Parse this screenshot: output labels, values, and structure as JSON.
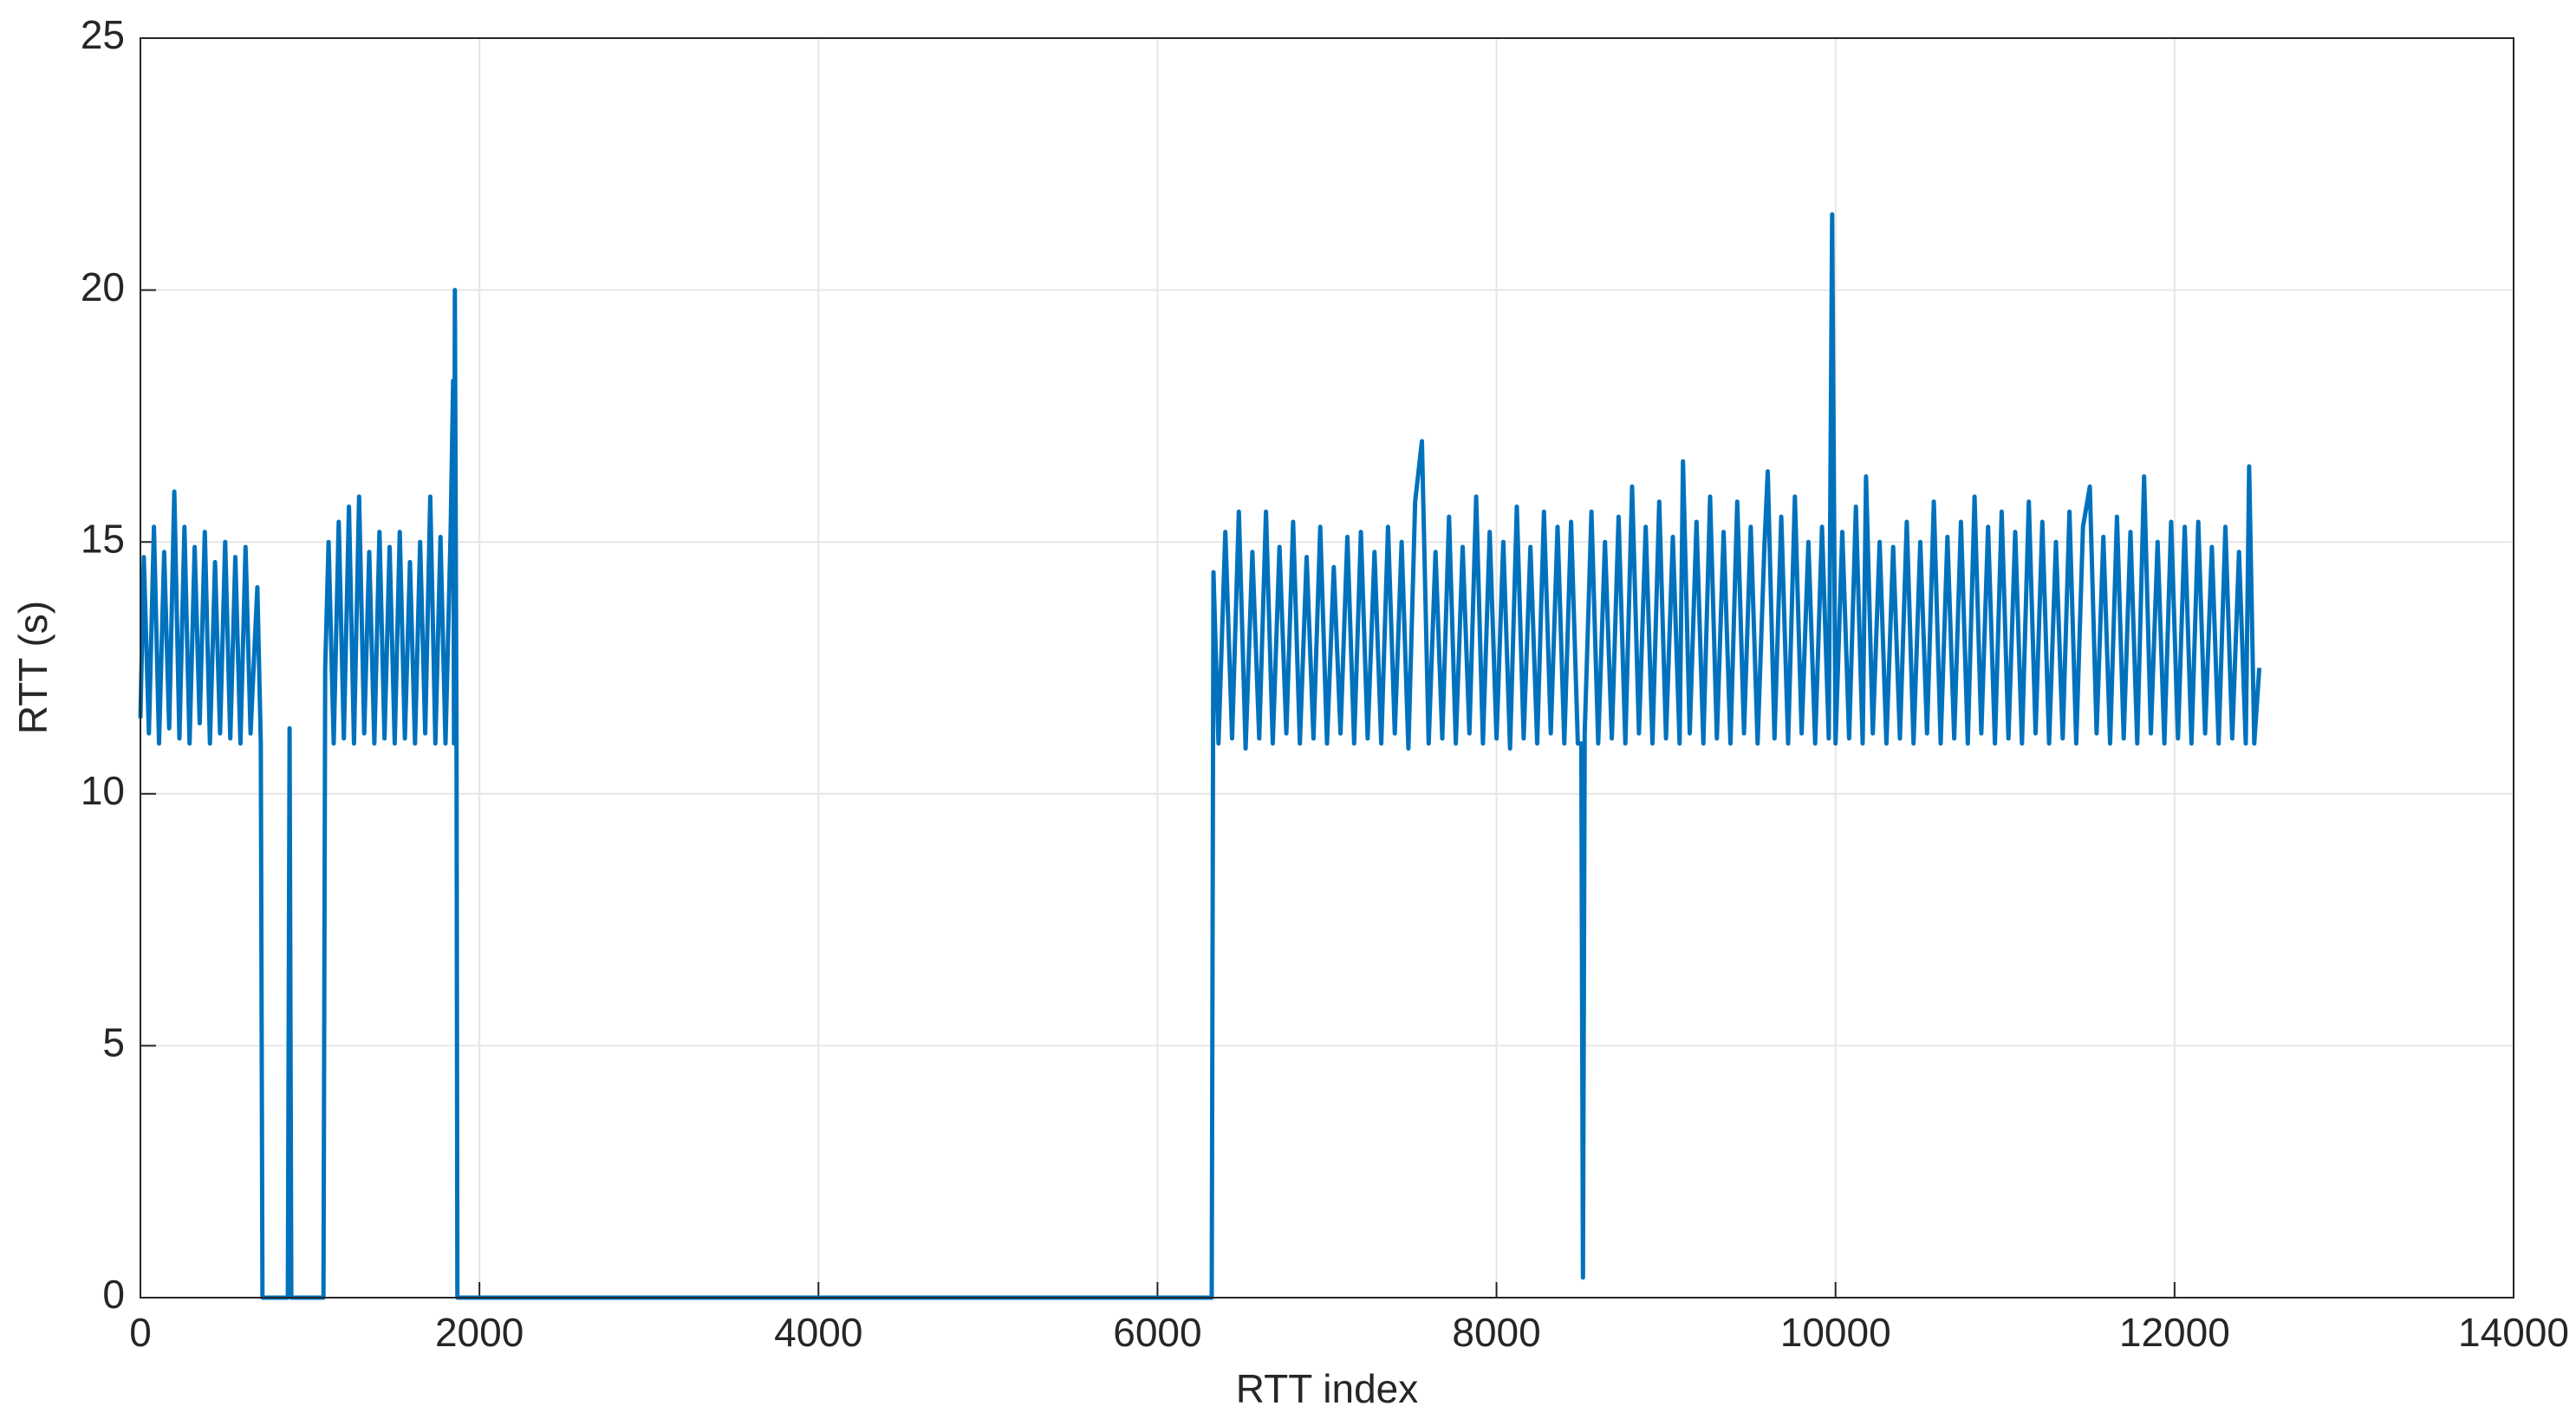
{
  "chart_data": {
    "type": "line",
    "xlabel": "RTT index",
    "ylabel": "RTT (s)",
    "color": "#0072bd",
    "grid": true,
    "xlim": [
      0,
      14000
    ],
    "xticks": [
      0,
      2000,
      4000,
      6000,
      8000,
      10000,
      12000,
      14000
    ],
    "ylim": [
      0,
      25
    ],
    "yticks": [
      0,
      5,
      10,
      15,
      20,
      25
    ],
    "x": [
      0,
      20,
      50,
      80,
      110,
      140,
      170,
      200,
      230,
      260,
      290,
      320,
      350,
      380,
      410,
      440,
      470,
      500,
      530,
      560,
      590,
      620,
      650,
      690,
      710,
      720,
      870,
      880,
      890,
      1080,
      1090,
      1110,
      1140,
      1170,
      1200,
      1230,
      1260,
      1290,
      1320,
      1350,
      1380,
      1410,
      1440,
      1470,
      1500,
      1530,
      1560,
      1590,
      1620,
      1650,
      1680,
      1710,
      1740,
      1770,
      1800,
      1830,
      1845,
      1850,
      1855,
      1865,
      1870,
      6320,
      6330,
      6360,
      6400,
      6440,
      6480,
      6520,
      6560,
      6600,
      6640,
      6680,
      6720,
      6760,
      6800,
      6840,
      6880,
      6920,
      6960,
      7000,
      7040,
      7080,
      7120,
      7160,
      7200,
      7240,
      7280,
      7320,
      7360,
      7400,
      7440,
      7480,
      7520,
      7560,
      7600,
      7640,
      7680,
      7720,
      7760,
      7800,
      7840,
      7880,
      7920,
      7960,
      8000,
      8040,
      8080,
      8120,
      8160,
      8200,
      8240,
      8280,
      8320,
      8360,
      8400,
      8440,
      8480,
      8500,
      8510,
      8520,
      8560,
      8600,
      8640,
      8680,
      8720,
      8760,
      8800,
      8840,
      8880,
      8920,
      8960,
      9000,
      9040,
      9080,
      9100,
      9140,
      9180,
      9220,
      9260,
      9300,
      9340,
      9380,
      9420,
      9460,
      9500,
      9540,
      9580,
      9600,
      9640,
      9680,
      9720,
      9760,
      9800,
      9840,
      9880,
      9920,
      9960,
      9980,
      10000,
      10040,
      10080,
      10120,
      10160,
      10180,
      10220,
      10260,
      10300,
      10340,
      10380,
      10420,
      10460,
      10500,
      10540,
      10580,
      10620,
      10660,
      10700,
      10740,
      10780,
      10820,
      10860,
      10900,
      10940,
      10980,
      11020,
      11060,
      11100,
      11140,
      11180,
      11220,
      11260,
      11300,
      11340,
      11380,
      11420,
      11460,
      11500,
      11540,
      11580,
      11620,
      11660,
      11700,
      11740,
      11780,
      11820,
      11860,
      11900,
      11940,
      11980,
      12020,
      12060,
      12100,
      12140,
      12180,
      12220,
      12260,
      12300,
      12340,
      12380,
      12420,
      12440,
      12470,
      12500
    ],
    "values": [
      11.5,
      14.7,
      11.2,
      15.3,
      11.0,
      14.8,
      11.3,
      16.0,
      11.1,
      15.3,
      11.0,
      14.9,
      11.4,
      15.2,
      11.0,
      14.6,
      11.2,
      15.0,
      11.1,
      14.7,
      11.0,
      14.9,
      11.2,
      14.1,
      11.0,
      0,
      0,
      11.3,
      0,
      0,
      12.5,
      15.0,
      11.0,
      15.4,
      11.1,
      15.7,
      11.0,
      15.9,
      11.2,
      14.8,
      11.0,
      15.2,
      11.1,
      14.9,
      11.0,
      15.2,
      11.1,
      14.6,
      11.0,
      15.0,
      11.2,
      15.9,
      11.0,
      15.1,
      11.0,
      15.2,
      18.2,
      11.0,
      20.0,
      11.0,
      0,
      0,
      14.4,
      11.0,
      15.2,
      11.1,
      15.6,
      10.9,
      14.8,
      11.1,
      15.6,
      11.0,
      14.9,
      11.2,
      15.4,
      11.0,
      14.7,
      11.1,
      15.3,
      11.0,
      14.5,
      11.2,
      15.1,
      11.0,
      15.2,
      11.1,
      14.8,
      11.0,
      15.3,
      11.2,
      15.0,
      10.9,
      15.8,
      17.0,
      11.0,
      14.8,
      11.1,
      15.5,
      11.0,
      14.9,
      11.2,
      15.9,
      11.0,
      15.2,
      11.1,
      15.0,
      10.9,
      15.7,
      11.1,
      14.9,
      11.0,
      15.6,
      11.2,
      15.3,
      11.0,
      15.4,
      11.0,
      11.0,
      0.4,
      11.2,
      15.6,
      11.0,
      15.0,
      11.1,
      15.5,
      11.0,
      16.1,
      11.2,
      15.3,
      11.0,
      15.8,
      11.1,
      15.1,
      11.0,
      16.6,
      11.2,
      15.4,
      11.0,
      15.9,
      11.1,
      15.2,
      11.0,
      15.8,
      11.2,
      15.3,
      11.0,
      14.9,
      16.4,
      11.1,
      15.5,
      11.0,
      15.9,
      11.2,
      15.0,
      11.0,
      15.3,
      11.1,
      21.5,
      11.0,
      15.2,
      11.1,
      15.7,
      11.0,
      16.3,
      11.2,
      15.0,
      11.0,
      14.9,
      11.1,
      15.4,
      11.0,
      15.0,
      11.2,
      15.8,
      11.0,
      15.1,
      11.1,
      15.4,
      11.0,
      15.9,
      11.2,
      15.3,
      11.0,
      15.6,
      11.1,
      15.2,
      11.0,
      15.8,
      11.2,
      15.4,
      11.0,
      15.0,
      11.1,
      15.6,
      11.0,
      15.3,
      16.1,
      11.2,
      15.1,
      11.0,
      15.5,
      11.1,
      15.2,
      11.0,
      16.3,
      11.2,
      15.0,
      11.0,
      15.4,
      11.1,
      15.3,
      11.0,
      15.4,
      11.2,
      14.9,
      11.0,
      15.3,
      11.1,
      14.8,
      11.0,
      16.5,
      11.0,
      12.5
    ]
  }
}
